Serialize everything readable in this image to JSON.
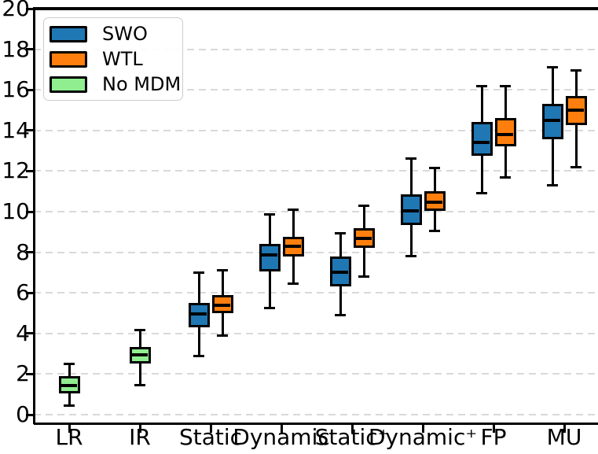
{
  "chart_data": {
    "type": "box",
    "title": "",
    "xlabel": "",
    "ylabel": "",
    "categories": [
      "LR",
      "IR",
      "Static",
      "Dynamic",
      "Static⁺",
      "Dynamic⁺",
      "FP",
      "MU"
    ],
    "ylim": [
      -0.45,
      20
    ],
    "yticks": [
      0,
      2,
      4,
      6,
      8,
      10,
      12,
      14,
      16,
      18,
      20
    ],
    "grid": {
      "axis": "y",
      "style": "dashed",
      "color": "#d9d9d9"
    },
    "box_edge_color": "#000000",
    "background_color": "#ffffff",
    "legend": {
      "position": "upper-left",
      "entries": [
        {
          "label": "SWO",
          "color": "#1f77b4"
        },
        {
          "label": "WTL",
          "color": "#ff7f0e"
        },
        {
          "label": "No MDM",
          "color": "#90ee90"
        }
      ]
    },
    "boxes": [
      {
        "category": "LR",
        "series": "No MDM",
        "whislo": 0.45,
        "q1": 1.05,
        "med": 1.45,
        "q3": 1.9,
        "whishi": 2.5
      },
      {
        "category": "IR",
        "series": "No MDM",
        "whislo": 1.45,
        "q1": 2.5,
        "med": 2.95,
        "q3": 3.35,
        "whishi": 4.15
      },
      {
        "category": "Static",
        "series": "SWO",
        "whislo": 2.9,
        "q1": 4.3,
        "med": 4.95,
        "q3": 5.5,
        "whishi": 7.0
      },
      {
        "category": "Static",
        "series": "WTL",
        "whislo": 3.9,
        "q1": 5.0,
        "med": 5.4,
        "q3": 5.9,
        "whishi": 7.1
      },
      {
        "category": "Dynamic",
        "series": "SWO",
        "whislo": 5.25,
        "q1": 7.05,
        "med": 7.85,
        "q3": 8.4,
        "whishi": 9.85
      },
      {
        "category": "Dynamic",
        "series": "WTL",
        "whislo": 6.45,
        "q1": 7.8,
        "med": 8.3,
        "q3": 8.75,
        "whishi": 10.1
      },
      {
        "category": "Static⁺",
        "series": "SWO",
        "whislo": 4.9,
        "q1": 6.3,
        "med": 7.0,
        "q3": 7.8,
        "whishi": 8.95
      },
      {
        "category": "Static⁺",
        "series": "WTL",
        "whislo": 6.8,
        "q1": 8.2,
        "med": 8.7,
        "q3": 9.2,
        "whishi": 10.3
      },
      {
        "category": "Dynamic⁺",
        "series": "SWO",
        "whislo": 7.8,
        "q1": 9.35,
        "med": 10.05,
        "q3": 10.85,
        "whishi": 12.6
      },
      {
        "category": "Dynamic⁺",
        "series": "WTL",
        "whislo": 9.05,
        "q1": 10.05,
        "med": 10.45,
        "q3": 11.0,
        "whishi": 12.15
      },
      {
        "category": "FP",
        "series": "SWO",
        "whislo": 10.9,
        "q1": 12.75,
        "med": 13.4,
        "q3": 14.4,
        "whishi": 16.2
      },
      {
        "category": "FP",
        "series": "WTL",
        "whislo": 11.7,
        "q1": 13.2,
        "med": 13.8,
        "q3": 14.6,
        "whishi": 16.2
      },
      {
        "category": "MU",
        "series": "SWO",
        "whislo": 11.3,
        "q1": 13.55,
        "med": 14.5,
        "q3": 15.3,
        "whishi": 17.1
      },
      {
        "category": "MU",
        "series": "WTL",
        "whislo": 12.2,
        "q1": 14.25,
        "med": 15.0,
        "q3": 15.7,
        "whishi": 16.95
      }
    ]
  }
}
